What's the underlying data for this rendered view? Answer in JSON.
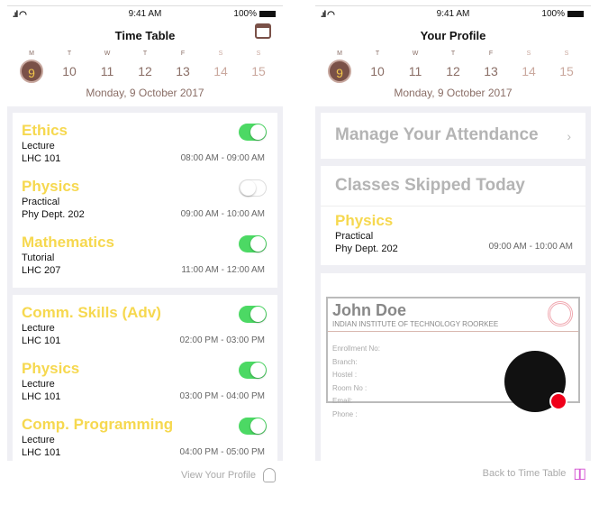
{
  "status": {
    "time": "9:41 AM",
    "battery": "100%"
  },
  "week": [
    {
      "l": "M",
      "n": "9"
    },
    {
      "l": "T",
      "n": "10"
    },
    {
      "l": "W",
      "n": "11"
    },
    {
      "l": "T",
      "n": "12"
    },
    {
      "l": "F",
      "n": "13"
    },
    {
      "l": "S",
      "n": "14"
    },
    {
      "l": "S",
      "n": "15"
    }
  ],
  "date": "Monday, 9 October 2017",
  "left": {
    "title": "Time Table",
    "footer": "View Your Profile",
    "card1": [
      {
        "name": "Ethics",
        "type": "Lecture",
        "room": "LHC 101",
        "time": "08:00 AM - 09:00 AM",
        "on": true
      },
      {
        "name": "Physics",
        "type": "Practical",
        "room": "Phy Dept. 202",
        "time": "09:00 AM - 10:00 AM",
        "on": false
      },
      {
        "name": "Mathematics",
        "type": "Tutorial",
        "room": "LHC 207",
        "time": "11:00 AM - 12:00 AM",
        "on": true
      }
    ],
    "card2": [
      {
        "name": "Comm. Skills (Adv)",
        "type": "Lecture",
        "room": "LHC 101",
        "time": "02:00 PM - 03:00 PM",
        "on": true
      },
      {
        "name": "Physics",
        "type": "Lecture",
        "room": "LHC 101",
        "time": "03:00 PM - 04:00 PM",
        "on": true
      },
      {
        "name": "Comp. Programming",
        "type": "Lecture",
        "room": "LHC 101",
        "time": "04:00 PM - 05:00 PM",
        "on": true
      }
    ]
  },
  "right": {
    "title": "Your Profile",
    "attendance": "Manage Your Attendance",
    "skipped": "Classes Skipped Today",
    "skipped_class": {
      "name": "Physics",
      "type": "Practical",
      "room": "Phy Dept. 202",
      "time": "09:00 AM - 10:00 AM"
    },
    "id": {
      "name": "John Doe",
      "institute": "INDIAN INSTITUTE OF TECHNOLOGY ROORKEE",
      "fields": [
        "Enrollment No:",
        "Branch:",
        "Hostel :",
        "Room No :",
        "Email:",
        "Phone :"
      ]
    },
    "footer": "Back to Time Table"
  },
  "colors": {
    "accent": "#7a5148",
    "class_name": "#f6d84f",
    "toggle_on": "#4cd964"
  }
}
